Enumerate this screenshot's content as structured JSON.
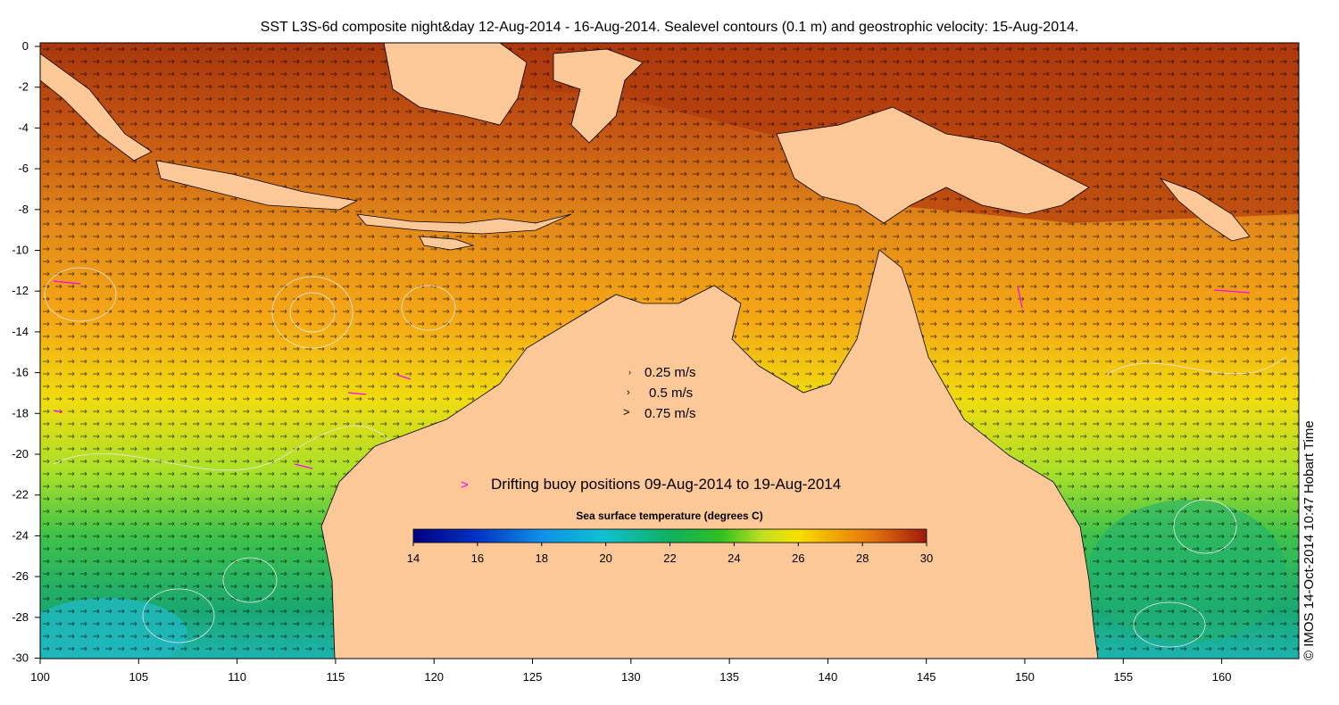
{
  "title": "SST L3S-6d composite night&day 12-Aug-2014 - 16-Aug-2014. Sealevel contours (0.1 m) and geostrophic velocity: 15-Aug-2014.",
  "credit": "© IMOS 14-Oct-2014 10:47 Hobart Time",
  "axes": {
    "lon_ticks": [
      "100",
      "105",
      "110",
      "115",
      "120",
      "125",
      "130",
      "135",
      "140",
      "145",
      "150",
      "155",
      "160"
    ],
    "lat_ticks": [
      "0",
      "-2",
      "-4",
      "-6",
      "-8",
      "-10",
      "-12",
      "-14",
      "-16",
      "-18",
      "-20",
      "-22",
      "-24",
      "-26",
      "-28",
      "-30"
    ]
  },
  "velocity_legend": [
    "0.25 m/s",
    "0.5 m/s",
    "0.75 m/s"
  ],
  "buoy_legend": "Drifting buoy positions 09-Aug-2014 to 19-Aug-2014",
  "colorbar": {
    "title": "Sea surface temperature (degrees C)",
    "ticks": [
      "14",
      "16",
      "18",
      "20",
      "22",
      "24",
      "26",
      "28",
      "30"
    ],
    "min": 14,
    "max": 30
  },
  "colors": {
    "land": "#fcc898",
    "buoy": "#ff00ff",
    "contour": "#e8e8e8"
  }
}
